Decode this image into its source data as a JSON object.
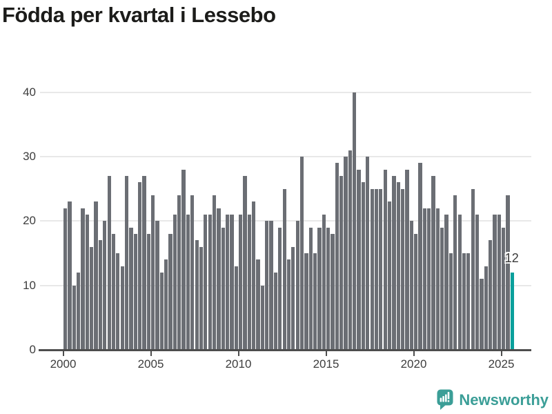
{
  "title": "Födda per kvartal i Lessebo",
  "chart_data": {
    "type": "bar",
    "title": "Födda per kvartal i Lessebo",
    "x_start": "2000 Q1",
    "x_end": "2025 Q3",
    "x_unit": "quarter",
    "x_tick_labels": [
      "2000",
      "2005",
      "2010",
      "2015",
      "2020",
      "2025"
    ],
    "y_ticks": [
      0,
      10,
      20,
      30,
      40
    ],
    "ylim": [
      0,
      42
    ],
    "grid": "horizontal",
    "legend": "none",
    "values": [
      22,
      23,
      10,
      12,
      22,
      21,
      16,
      23,
      17,
      20,
      27,
      18,
      15,
      13,
      27,
      19,
      18,
      26,
      27,
      18,
      24,
      20,
      12,
      14,
      18,
      21,
      24,
      28,
      21,
      24,
      17,
      16,
      21,
      21,
      24,
      22,
      19,
      21,
      21,
      13,
      21,
      27,
      21,
      23,
      14,
      10,
      20,
      20,
      12,
      19,
      25,
      14,
      16,
      20,
      30,
      15,
      19,
      15,
      19,
      21,
      19,
      18,
      29,
      27,
      30,
      31,
      40,
      28,
      26,
      30,
      25,
      25,
      25,
      28,
      23,
      27,
      26,
      25,
      28,
      20,
      18,
      29,
      22,
      22,
      27,
      22,
      19,
      21,
      15,
      24,
      21,
      15,
      15,
      25,
      21,
      11,
      13,
      17,
      21,
      21,
      19,
      24,
      12
    ],
    "highlight": {
      "index": 102,
      "label": "12"
    },
    "colors": {
      "bar": "#6b6e74",
      "highlight": "#0aa09c"
    }
  },
  "logo": {
    "text": "Newsworthy",
    "color": "#3b9e97"
  }
}
